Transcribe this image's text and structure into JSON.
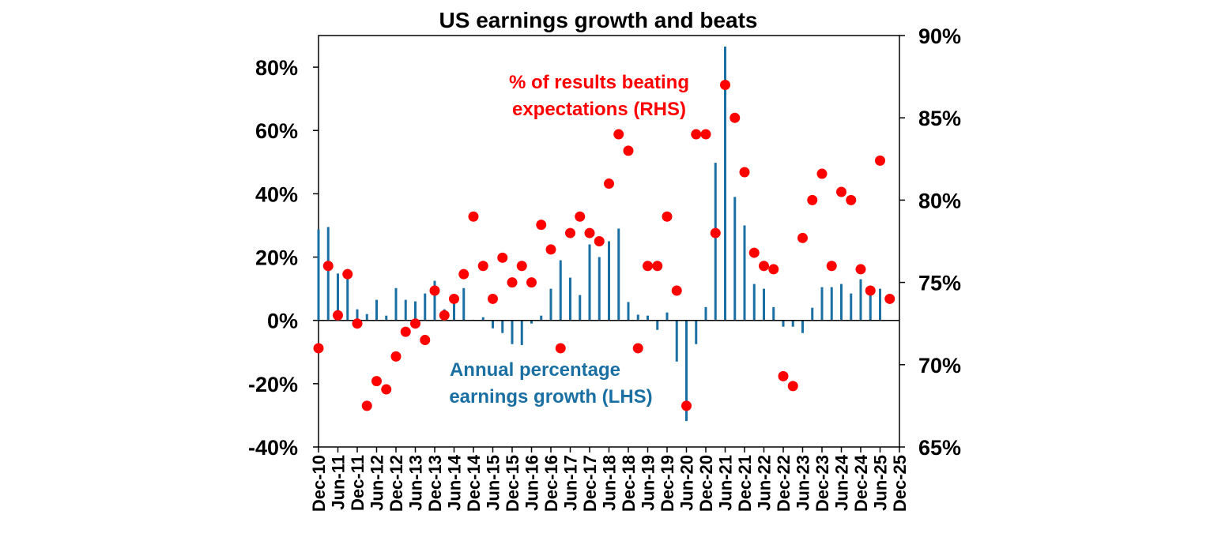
{
  "chart_data": {
    "type": "bar+scatter",
    "title": "US earnings growth and beats",
    "x_tick_labels": [
      "Dec-10",
      "Jun-11",
      "Dec-11",
      "Jun-12",
      "Dec-12",
      "Jun-13",
      "Dec-13",
      "Jun-14",
      "Dec-14",
      "Jun-15",
      "Dec-15",
      "Jun-16",
      "Dec-16",
      "Jun-17",
      "Dec-17",
      "Jun-18",
      "Dec-18",
      "Jun-19",
      "Dec-19",
      "Jun-20",
      "Dec-20",
      "Jun-21",
      "Dec-21",
      "Jun-22",
      "Dec-22",
      "Jun-23",
      "Dec-23",
      "Jun-24",
      "Dec-24",
      "Jun-25",
      "Dec-25"
    ],
    "left_axis": {
      "ylim": [
        -40,
        90
      ],
      "ticks": [
        -40,
        -20,
        0,
        20,
        40,
        60,
        80
      ],
      "tick_labels": [
        "-40%",
        "-20%",
        "0%",
        "20%",
        "40%",
        "60%",
        "80%"
      ]
    },
    "right_axis": {
      "ylim": [
        65,
        90
      ],
      "ticks": [
        65,
        70,
        75,
        80,
        85,
        90
      ],
      "tick_labels": [
        "65%",
        "70%",
        "75%",
        "80%",
        "85%",
        "90%"
      ]
    },
    "series": [
      {
        "name": "Annual percentage earnings growth (LHS)",
        "axis": "left",
        "type": "bar",
        "color": "#1a6fa3",
        "quarter_start": "Dec-10",
        "values": [
          28.7,
          29.5,
          14.8,
          14.5,
          3.5,
          2.0,
          6.5,
          1.5,
          10.2,
          6.5,
          6.0,
          8.5,
          12.5,
          3.5,
          7.0,
          10.2,
          0.2,
          1.0,
          -2.5,
          -4.0,
          -7.5,
          -7.8,
          -1.0,
          1.5,
          10.0,
          19.0,
          13.5,
          8.0,
          24.0,
          20.0,
          25.0,
          29.0,
          5.8,
          1.8,
          1.5,
          -3.0,
          2.5,
          -13.0,
          -31.8,
          -7.5,
          4.2,
          49.8,
          86.5,
          39.0,
          30.0,
          11.5,
          10.0,
          4.2,
          -2.0,
          -2.0,
          -4.0,
          4.0,
          10.5,
          10.5,
          11.5,
          8.5,
          13.0,
          9.0,
          10.0
        ]
      },
      {
        "name": "% of results beating expectations (RHS)",
        "axis": "right",
        "type": "scatter",
        "color": "#ff0000",
        "quarter_start": "Dec-10",
        "values": [
          71.0,
          76.0,
          73.0,
          75.5,
          72.5,
          67.5,
          69.0,
          68.5,
          70.5,
          72.0,
          72.5,
          71.5,
          74.5,
          73.0,
          74.0,
          75.5,
          79.0,
          76.0,
          74.0,
          76.5,
          75.0,
          76.0,
          75.0,
          78.5,
          77.0,
          71.0,
          78.0,
          79.0,
          78.0,
          77.5,
          81.0,
          84.0,
          83.0,
          71.0,
          76.0,
          76.0,
          79.0,
          74.5,
          67.5,
          84.0,
          84.0,
          78.0,
          87.0,
          85.0,
          81.7,
          76.8,
          76.0,
          75.8,
          69.3,
          68.7,
          77.7,
          80.0,
          81.6,
          76.0,
          80.5,
          80.0,
          75.8,
          74.5,
          82.4,
          74.0
        ]
      }
    ],
    "annotations": {
      "rhs_label_line1": "% of results beating",
      "rhs_label_line2": "expectations (RHS)",
      "lhs_label_line1": "Annual percentage",
      "lhs_label_line2": "earnings growth (LHS)"
    }
  }
}
